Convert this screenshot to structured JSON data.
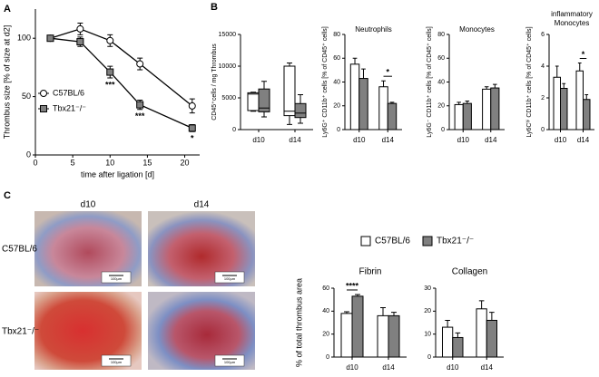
{
  "figure": {
    "panel_labels": [
      "A",
      "B",
      "C"
    ],
    "histology": {
      "columns": [
        "d10",
        "d14"
      ],
      "rows": [
        "C57BL/6",
        "Tbx21⁻/⁻"
      ],
      "scale_bar": "100µm"
    }
  },
  "chart_data": [
    {
      "type": "line",
      "x_label": "time after ligation [d]",
      "y_label": "Thrombus size [% of size at d2]",
      "x": [
        2,
        6,
        10,
        14,
        21
      ],
      "xlim": [
        0,
        22
      ],
      "xticks": [
        0,
        5,
        10,
        15,
        20
      ],
      "ylim": [
        0,
        125
      ],
      "yticks": [
        0,
        50,
        100
      ],
      "legend": "left",
      "series": [
        {
          "name": "C57BL/6",
          "color": "#ffffff",
          "marker": "circle",
          "values": [
            100,
            108,
            98,
            78,
            42
          ],
          "errors": [
            0,
            5,
            5,
            5,
            6
          ]
        },
        {
          "name": "Tbx21⁻/⁻",
          "color": "#808080",
          "marker": "square",
          "values": [
            100,
            97,
            71,
            43,
            23
          ],
          "errors": [
            0,
            4,
            5,
            4,
            3
          ]
        }
      ],
      "annotations": [
        {
          "x": 10,
          "text": "***"
        },
        {
          "x": 14,
          "text": "***"
        },
        {
          "x": 21,
          "text": "*"
        }
      ]
    },
    {
      "type": "box",
      "y_label": "CD45⁺cells / mg Thrombus",
      "categories": [
        "d10",
        "d14"
      ],
      "ylim": [
        0,
        15000
      ],
      "yticks": [
        0,
        5000,
        10000,
        15000
      ],
      "series": [
        {
          "color": "#ffffff",
          "min": [
            2900,
            800
          ],
          "q1": [
            3000,
            2200
          ],
          "median": [
            5600,
            2900
          ],
          "q3": [
            5800,
            10000
          ],
          "max": [
            5900,
            10500
          ]
        },
        {
          "color": "#808080",
          "min": [
            2000,
            1000
          ],
          "q1": [
            2800,
            1900
          ],
          "median": [
            3400,
            2600
          ],
          "q3": [
            6400,
            4100
          ],
          "max": [
            7600,
            5500
          ]
        }
      ]
    },
    {
      "type": "bar",
      "title": "Neutrophils",
      "y_label": "Ly6G⁺ CD11b⁺ cells [% of CD45⁺ cells]",
      "categories": [
        "d10",
        "d14"
      ],
      "ylim": [
        0,
        80
      ],
      "yticks": [
        0,
        20,
        40,
        60,
        80
      ],
      "series": [
        {
          "color": "#ffffff",
          "values": [
            55,
            36
          ],
          "errors": [
            5,
            5
          ]
        },
        {
          "color": "#808080",
          "values": [
            43,
            22
          ],
          "errors": [
            8,
            1
          ]
        }
      ],
      "annotations": [
        {
          "category": "d14",
          "text": "*"
        }
      ]
    },
    {
      "type": "bar",
      "title": "Monocytes",
      "y_label": "Ly6G⁻ CD11b⁺ cells [% of CD45⁺ cells]",
      "categories": [
        "d10",
        "d14"
      ],
      "ylim": [
        0,
        80
      ],
      "yticks": [
        0,
        20,
        40,
        60,
        80
      ],
      "series": [
        {
          "color": "#ffffff",
          "values": [
            21,
            34
          ],
          "errors": [
            2,
            2
          ]
        },
        {
          "color": "#808080",
          "values": [
            22,
            35
          ],
          "errors": [
            2,
            3
          ]
        }
      ]
    },
    {
      "type": "bar",
      "title": [
        "inflammatory",
        "Monocytes"
      ],
      "y_label": "Ly6Cʰⁱ CD11b⁺ cells [% of CD45⁺ cells]",
      "categories": [
        "d10",
        "d14"
      ],
      "ylim": [
        0,
        6
      ],
      "yticks": [
        0,
        2,
        4,
        6
      ],
      "series": [
        {
          "color": "#ffffff",
          "values": [
            3.3,
            3.7
          ],
          "errors": [
            0.7,
            0.5
          ]
        },
        {
          "color": "#808080",
          "values": [
            2.6,
            1.9
          ],
          "errors": [
            0.3,
            0.3
          ]
        }
      ],
      "annotations": [
        {
          "category": "d14",
          "text": "*"
        }
      ]
    },
    {
      "type": "bar",
      "title": "Fibrin",
      "y_label": "% of total thrombus area",
      "categories": [
        "d10",
        "d14"
      ],
      "ylim": [
        0,
        60
      ],
      "yticks": [
        0,
        20,
        40,
        60
      ],
      "series": [
        {
          "name": "C57BL/6",
          "color": "#ffffff",
          "values": [
            38,
            36
          ],
          "errors": [
            1.5,
            7
          ]
        },
        {
          "name": "Tbx21⁻/⁻",
          "color": "#808080",
          "values": [
            53,
            36
          ],
          "errors": [
            1.5,
            3
          ]
        }
      ],
      "annotations": [
        {
          "category": "d10",
          "text": "****"
        }
      ]
    },
    {
      "type": "bar",
      "title": "Collagen",
      "categories": [
        "d10",
        "d14"
      ],
      "ylim": [
        0,
        30
      ],
      "yticks": [
        0,
        10,
        20,
        30
      ],
      "series": [
        {
          "color": "#ffffff",
          "values": [
            13,
            21
          ],
          "errors": [
            3,
            3.5
          ]
        },
        {
          "color": "#808080",
          "values": [
            8.5,
            16
          ],
          "errors": [
            2,
            3.5
          ]
        }
      ]
    }
  ]
}
